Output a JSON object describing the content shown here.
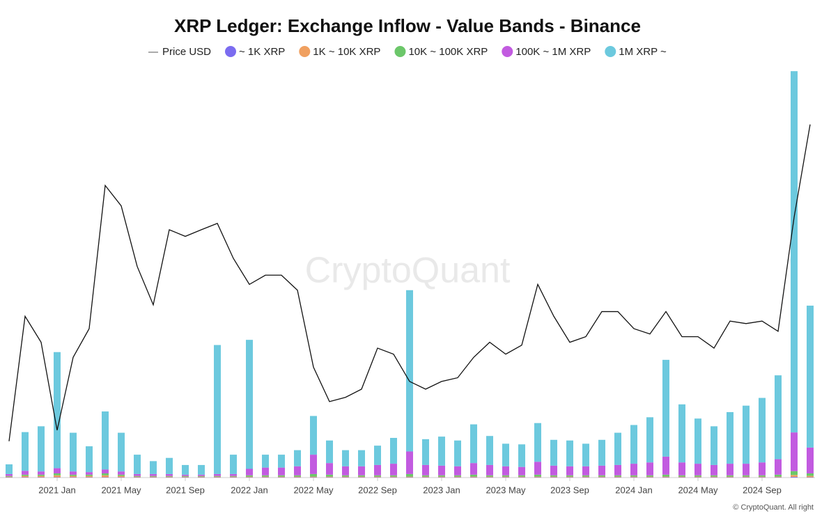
{
  "chart_data": {
    "type": "combo",
    "title": "XRP Ledger: Exchange Inflow - Value Bands - Binance",
    "watermark": "CryptoQuant",
    "footer": "© CryptoQuant. All right",
    "x": [
      "2020-10",
      "2020-11",
      "2020-12",
      "2021-01",
      "2021-02",
      "2021-03",
      "2021-04",
      "2021-05",
      "2021-06",
      "2021-07",
      "2021-08",
      "2021-09",
      "2021-10",
      "2021-11",
      "2021-12",
      "2022-01",
      "2022-02",
      "2022-03",
      "2022-04",
      "2022-05",
      "2022-06",
      "2022-07",
      "2022-08",
      "2022-09",
      "2022-10",
      "2022-11",
      "2022-12",
      "2023-01",
      "2023-02",
      "2023-03",
      "2023-04",
      "2023-05",
      "2023-06",
      "2023-07",
      "2023-08",
      "2023-09",
      "2023-10",
      "2023-11",
      "2023-12",
      "2024-01",
      "2024-02",
      "2024-03",
      "2024-04",
      "2024-05",
      "2024-06",
      "2024-07",
      "2024-08",
      "2024-09",
      "2024-10",
      "2024-11",
      "2024-12"
    ],
    "xticks": [
      {
        "value": "2021-01",
        "label": "2021 Jan"
      },
      {
        "value": "2021-05",
        "label": "2021 May"
      },
      {
        "value": "2021-09",
        "label": "2021 Sep"
      },
      {
        "value": "2022-01",
        "label": "2022 Jan"
      },
      {
        "value": "2022-05",
        "label": "2022 May"
      },
      {
        "value": "2022-09",
        "label": "2022 Sep"
      },
      {
        "value": "2023-01",
        "label": "2023 Jan"
      },
      {
        "value": "2023-05",
        "label": "2023 May"
      },
      {
        "value": "2023-09",
        "label": "2023 Sep"
      },
      {
        "value": "2024-01",
        "label": "2024 Jan"
      },
      {
        "value": "2024-05",
        "label": "2024 May"
      },
      {
        "value": "2024-09",
        "label": "2024 Sep"
      }
    ],
    "ylim": [
      0.22,
      2.4
    ],
    "log_scale": true,
    "y2lim": [
      0,
      600
    ],
    "series": [
      {
        "name": "Price USD",
        "mark": "line",
        "color": "#111111",
        "values": [
          0.25,
          0.6,
          0.5,
          0.27,
          0.45,
          0.55,
          1.5,
          1.3,
          0.85,
          0.65,
          1.1,
          1.05,
          1.1,
          1.15,
          0.9,
          0.75,
          0.8,
          0.8,
          0.72,
          0.42,
          0.33,
          0.34,
          0.36,
          0.48,
          0.46,
          0.38,
          0.36,
          0.38,
          0.39,
          0.45,
          0.5,
          0.46,
          0.49,
          0.75,
          0.6,
          0.5,
          0.52,
          0.62,
          0.62,
          0.55,
          0.53,
          0.62,
          0.52,
          0.52,
          0.48,
          0.58,
          0.57,
          0.58,
          0.54,
          1.2,
          2.3
        ]
      },
      {
        "name": "~ 1K XRP",
        "mark": "bar",
        "axis": "y2",
        "color": "#7b6cf0",
        "values": [
          0.5,
          0.5,
          0.5,
          0.5,
          0.5,
          0.5,
          0.5,
          0.5,
          0.5,
          0.5,
          0.5,
          0.5,
          0.5,
          0.5,
          0.5,
          0.5,
          0.5,
          0.5,
          0.5,
          0.5,
          0.5,
          0.5,
          0.5,
          0.5,
          0.5,
          0.5,
          0.5,
          0.5,
          0.5,
          0.5,
          0.5,
          0.5,
          0.5,
          0.5,
          0.5,
          0.5,
          0.5,
          0.5,
          0.5,
          0.5,
          0.5,
          0.5,
          0.5,
          0.5,
          0.5,
          0.5,
          0.5,
          0.5,
          0.5,
          1,
          0.5
        ]
      },
      {
        "name": "1K ~ 10K XRP",
        "mark": "bar",
        "axis": "y2",
        "color": "#f0a060",
        "values": [
          1,
          2,
          2,
          3,
          2,
          2,
          3,
          2,
          1,
          1,
          1,
          1,
          1,
          1,
          1,
          1,
          1,
          1,
          1,
          1,
          1,
          1,
          1,
          1,
          1,
          1,
          1,
          1,
          1,
          1,
          1,
          1,
          1,
          1,
          1,
          1,
          1,
          1,
          1,
          1,
          1,
          1,
          1,
          1,
          1,
          1,
          1,
          1,
          1,
          3,
          2
        ]
      },
      {
        "name": "10K ~ 100K XRP",
        "mark": "bar",
        "axis": "y2",
        "color": "#6cc76a",
        "values": [
          1,
          2,
          2,
          3,
          2,
          2,
          3,
          2,
          1,
          1,
          1,
          1,
          1,
          1,
          1,
          2,
          2,
          2,
          2,
          4,
          3,
          2,
          2,
          2,
          2,
          4,
          2,
          2,
          2,
          3,
          2,
          2,
          2,
          3,
          2,
          2,
          2,
          2,
          2,
          2,
          2,
          3,
          2,
          2,
          2,
          2,
          2,
          2,
          3,
          6,
          4
        ]
      },
      {
        "name": "100K ~ 1M XRP",
        "mark": "bar",
        "axis": "y2",
        "color": "#c25be0",
        "values": [
          3,
          6,
          5,
          8,
          5,
          4,
          6,
          5,
          3,
          3,
          3,
          2,
          2,
          3,
          3,
          10,
          12,
          12,
          14,
          30,
          18,
          14,
          14,
          16,
          18,
          35,
          16,
          15,
          14,
          18,
          16,
          14,
          13,
          20,
          15,
          14,
          14,
          15,
          16,
          18,
          20,
          28,
          20,
          18,
          16,
          18,
          18,
          20,
          24,
          60,
          40
        ]
      },
      {
        "name": "1M XRP ~",
        "mark": "bar",
        "axis": "y2",
        "color": "#6cc9de",
        "values": [
          15,
          60,
          70,
          180,
          60,
          40,
          90,
          60,
          30,
          20,
          25,
          15,
          15,
          200,
          30,
          200,
          20,
          20,
          25,
          60,
          35,
          25,
          25,
          30,
          40,
          250,
          40,
          45,
          40,
          60,
          45,
          35,
          35,
          60,
          40,
          40,
          35,
          40,
          50,
          60,
          70,
          150,
          90,
          70,
          60,
          80,
          90,
          100,
          130,
          560,
          220
        ]
      }
    ]
  }
}
